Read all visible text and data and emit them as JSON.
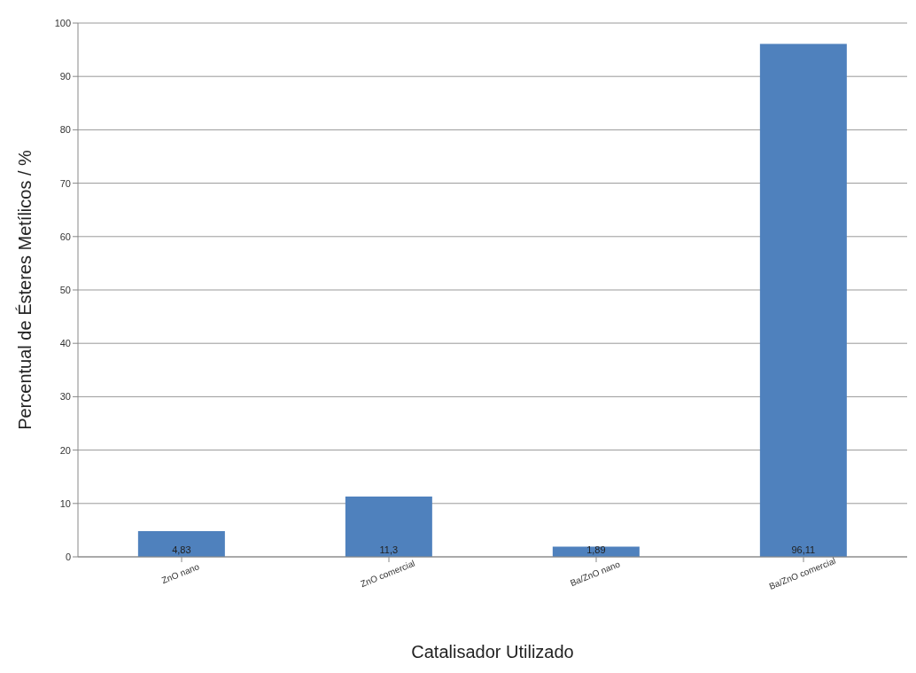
{
  "chart_data": {
    "type": "bar",
    "xlabel": "Catalisador Utilizado",
    "ylabel": "Percentual de Ésteres Metílicos / %",
    "categories": [
      "ZnO nano",
      "ZnO comercial",
      "Ba/ZnO nano",
      "Ba/ZnO comercial"
    ],
    "values": [
      4.83,
      11.3,
      1.89,
      96.11
    ],
    "value_labels": [
      "4,83",
      "11,3",
      "1,89",
      "96,11"
    ],
    "color": "#4f81bd",
    "ylim": [
      0,
      100
    ],
    "yticks": [
      0,
      10,
      20,
      30,
      40,
      50,
      60,
      70,
      80,
      90,
      100
    ],
    "grid": "y"
  }
}
